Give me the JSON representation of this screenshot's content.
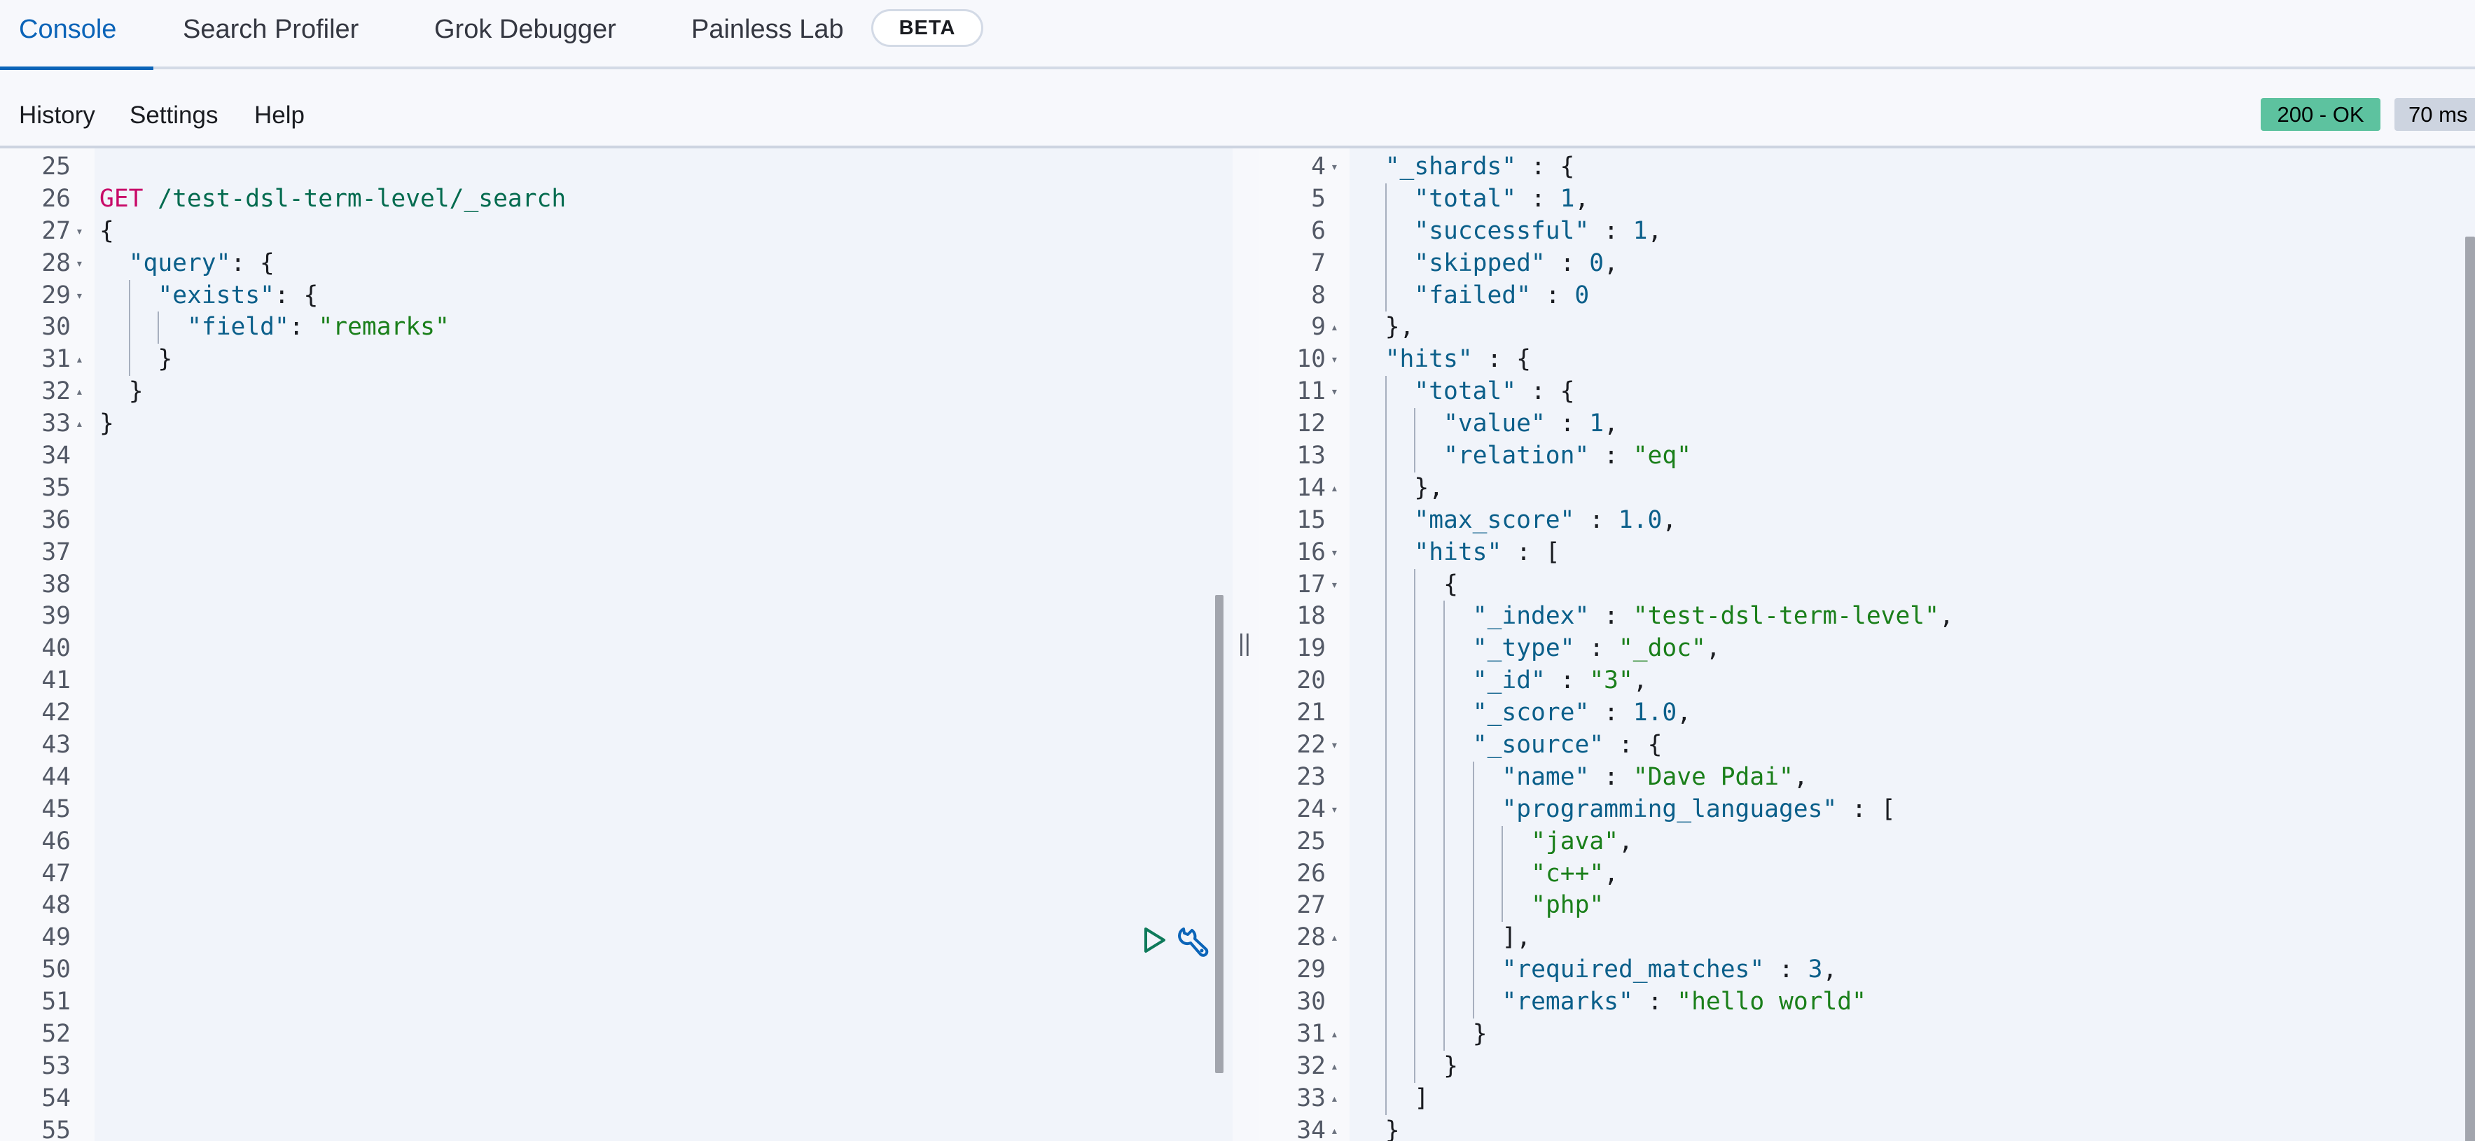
{
  "tabs": [
    {
      "label": "Console",
      "active": true
    },
    {
      "label": "Search Profiler"
    },
    {
      "label": "Grok Debugger"
    },
    {
      "label": "Painless Lab"
    }
  ],
  "beta_badge": "BETA",
  "menu": {
    "history": "History",
    "settings": "Settings",
    "help": "Help"
  },
  "status": {
    "code": "200 - OK",
    "time": "70 ms",
    "ok_color": "#5dc29f"
  },
  "icons": {
    "run": "play-icon",
    "options": "wrench-icon",
    "resize": "double-bar-icon"
  },
  "resize_glyph": "||",
  "request_editor": {
    "lines": [
      {
        "n": "25",
        "fold": "",
        "indent": 0,
        "tokens": []
      },
      {
        "n": "26",
        "fold": "",
        "indent": 0,
        "tokens": [
          [
            "m",
            "GET"
          ],
          [
            "p",
            " "
          ],
          [
            "u",
            "/test-dsl-term-level/_search"
          ]
        ]
      },
      {
        "n": "27",
        "fold": "open",
        "indent": 0,
        "tokens": [
          [
            "p",
            "{"
          ]
        ]
      },
      {
        "n": "28",
        "fold": "open",
        "indent": 1,
        "tokens": [
          [
            "k",
            "\"query\""
          ],
          [
            "p",
            ": {"
          ]
        ]
      },
      {
        "n": "29",
        "fold": "open",
        "indent": 2,
        "tokens": [
          [
            "k",
            "\"exists\""
          ],
          [
            "p",
            ": {"
          ]
        ]
      },
      {
        "n": "30",
        "fold": "",
        "indent": 3,
        "tokens": [
          [
            "k",
            "\"field\""
          ],
          [
            "p",
            ": "
          ],
          [
            "s",
            "\"remarks\""
          ]
        ]
      },
      {
        "n": "31",
        "fold": "close",
        "indent": 2,
        "tokens": [
          [
            "p",
            "}"
          ]
        ]
      },
      {
        "n": "32",
        "fold": "close",
        "indent": 1,
        "tokens": [
          [
            "p",
            "}"
          ]
        ]
      },
      {
        "n": "33",
        "fold": "close",
        "indent": 0,
        "tokens": [
          [
            "p",
            "}"
          ]
        ]
      },
      {
        "n": "34",
        "fold": "",
        "indent": 0,
        "tokens": []
      },
      {
        "n": "35",
        "fold": "",
        "indent": 0,
        "tokens": []
      },
      {
        "n": "36",
        "fold": "",
        "indent": 0,
        "tokens": []
      },
      {
        "n": "37",
        "fold": "",
        "indent": 0,
        "tokens": []
      },
      {
        "n": "38",
        "fold": "",
        "indent": 0,
        "tokens": []
      },
      {
        "n": "39",
        "fold": "",
        "indent": 0,
        "tokens": []
      },
      {
        "n": "40",
        "fold": "",
        "indent": 0,
        "tokens": []
      },
      {
        "n": "41",
        "fold": "",
        "indent": 0,
        "tokens": []
      },
      {
        "n": "42",
        "fold": "",
        "indent": 0,
        "tokens": []
      },
      {
        "n": "43",
        "fold": "",
        "indent": 0,
        "tokens": []
      },
      {
        "n": "44",
        "fold": "",
        "indent": 0,
        "tokens": []
      },
      {
        "n": "45",
        "fold": "",
        "indent": 0,
        "tokens": []
      },
      {
        "n": "46",
        "fold": "",
        "indent": 0,
        "tokens": []
      },
      {
        "n": "47",
        "fold": "",
        "indent": 0,
        "tokens": []
      },
      {
        "n": "48",
        "fold": "",
        "indent": 0,
        "tokens": []
      },
      {
        "n": "49",
        "fold": "",
        "indent": 0,
        "tokens": []
      },
      {
        "n": "50",
        "fold": "",
        "indent": 0,
        "tokens": []
      },
      {
        "n": "51",
        "fold": "",
        "indent": 0,
        "tokens": []
      },
      {
        "n": "52",
        "fold": "",
        "indent": 0,
        "tokens": []
      },
      {
        "n": "53",
        "fold": "",
        "indent": 0,
        "tokens": []
      },
      {
        "n": "54",
        "fold": "",
        "indent": 0,
        "tokens": []
      },
      {
        "n": "55",
        "fold": "",
        "indent": 0,
        "tokens": []
      }
    ]
  },
  "response_editor": {
    "lines": [
      {
        "n": "4",
        "fold": "open",
        "indent": 1,
        "tokens": [
          [
            "k",
            "\"_shards\""
          ],
          [
            "p",
            " : {"
          ]
        ]
      },
      {
        "n": "5",
        "fold": "",
        "indent": 2,
        "tokens": [
          [
            "k",
            "\"total\""
          ],
          [
            "p",
            " : "
          ],
          [
            "n",
            "1"
          ],
          [
            "p",
            ","
          ]
        ]
      },
      {
        "n": "6",
        "fold": "",
        "indent": 2,
        "tokens": [
          [
            "k",
            "\"successful\""
          ],
          [
            "p",
            " : "
          ],
          [
            "n",
            "1"
          ],
          [
            "p",
            ","
          ]
        ]
      },
      {
        "n": "7",
        "fold": "",
        "indent": 2,
        "tokens": [
          [
            "k",
            "\"skipped\""
          ],
          [
            "p",
            " : "
          ],
          [
            "n",
            "0"
          ],
          [
            "p",
            ","
          ]
        ]
      },
      {
        "n": "8",
        "fold": "",
        "indent": 2,
        "tokens": [
          [
            "k",
            "\"failed\""
          ],
          [
            "p",
            " : "
          ],
          [
            "n",
            "0"
          ]
        ]
      },
      {
        "n": "9",
        "fold": "close",
        "indent": 1,
        "tokens": [
          [
            "p",
            "},"
          ]
        ]
      },
      {
        "n": "10",
        "fold": "open",
        "indent": 1,
        "tokens": [
          [
            "k",
            "\"hits\""
          ],
          [
            "p",
            " : {"
          ]
        ]
      },
      {
        "n": "11",
        "fold": "open",
        "indent": 2,
        "tokens": [
          [
            "k",
            "\"total\""
          ],
          [
            "p",
            " : {"
          ]
        ]
      },
      {
        "n": "12",
        "fold": "",
        "indent": 3,
        "tokens": [
          [
            "k",
            "\"value\""
          ],
          [
            "p",
            " : "
          ],
          [
            "n",
            "1"
          ],
          [
            "p",
            ","
          ]
        ]
      },
      {
        "n": "13",
        "fold": "",
        "indent": 3,
        "tokens": [
          [
            "k",
            "\"relation\""
          ],
          [
            "p",
            " : "
          ],
          [
            "s",
            "\"eq\""
          ]
        ]
      },
      {
        "n": "14",
        "fold": "close",
        "indent": 2,
        "tokens": [
          [
            "p",
            "},"
          ]
        ]
      },
      {
        "n": "15",
        "fold": "",
        "indent": 2,
        "tokens": [
          [
            "k",
            "\"max_score\""
          ],
          [
            "p",
            " : "
          ],
          [
            "n",
            "1.0"
          ],
          [
            "p",
            ","
          ]
        ]
      },
      {
        "n": "16",
        "fold": "open",
        "indent": 2,
        "tokens": [
          [
            "k",
            "\"hits\""
          ],
          [
            "p",
            " : ["
          ]
        ]
      },
      {
        "n": "17",
        "fold": "open",
        "indent": 3,
        "tokens": [
          [
            "p",
            "{"
          ]
        ]
      },
      {
        "n": "18",
        "fold": "",
        "indent": 4,
        "tokens": [
          [
            "k",
            "\"_index\""
          ],
          [
            "p",
            " : "
          ],
          [
            "s",
            "\"test-dsl-term-level\""
          ],
          [
            "p",
            ","
          ]
        ]
      },
      {
        "n": "19",
        "fold": "",
        "indent": 4,
        "tokens": [
          [
            "k",
            "\"_type\""
          ],
          [
            "p",
            " : "
          ],
          [
            "s",
            "\"_doc\""
          ],
          [
            "p",
            ","
          ]
        ]
      },
      {
        "n": "20",
        "fold": "",
        "indent": 4,
        "tokens": [
          [
            "k",
            "\"_id\""
          ],
          [
            "p",
            " : "
          ],
          [
            "s",
            "\"3\""
          ],
          [
            "p",
            ","
          ]
        ]
      },
      {
        "n": "21",
        "fold": "",
        "indent": 4,
        "tokens": [
          [
            "k",
            "\"_score\""
          ],
          [
            "p",
            " : "
          ],
          [
            "n",
            "1.0"
          ],
          [
            "p",
            ","
          ]
        ]
      },
      {
        "n": "22",
        "fold": "open",
        "indent": 4,
        "tokens": [
          [
            "k",
            "\"_source\""
          ],
          [
            "p",
            " : {"
          ]
        ]
      },
      {
        "n": "23",
        "fold": "",
        "indent": 5,
        "tokens": [
          [
            "k",
            "\"name\""
          ],
          [
            "p",
            " : "
          ],
          [
            "s",
            "\"Dave Pdai\""
          ],
          [
            "p",
            ","
          ]
        ]
      },
      {
        "n": "24",
        "fold": "open",
        "indent": 5,
        "tokens": [
          [
            "k",
            "\"programming_languages\""
          ],
          [
            "p",
            " : ["
          ]
        ]
      },
      {
        "n": "25",
        "fold": "",
        "indent": 6,
        "tokens": [
          [
            "s",
            "\"java\""
          ],
          [
            "p",
            ","
          ]
        ]
      },
      {
        "n": "26",
        "fold": "",
        "indent": 6,
        "tokens": [
          [
            "s",
            "\"c++\""
          ],
          [
            "p",
            ","
          ]
        ]
      },
      {
        "n": "27",
        "fold": "",
        "indent": 6,
        "tokens": [
          [
            "s",
            "\"php\""
          ]
        ]
      },
      {
        "n": "28",
        "fold": "close",
        "indent": 5,
        "tokens": [
          [
            "p",
            "],"
          ]
        ]
      },
      {
        "n": "29",
        "fold": "",
        "indent": 5,
        "tokens": [
          [
            "k",
            "\"required_matches\""
          ],
          [
            "p",
            " : "
          ],
          [
            "n",
            "3"
          ],
          [
            "p",
            ","
          ]
        ]
      },
      {
        "n": "30",
        "fold": "",
        "indent": 5,
        "tokens": [
          [
            "k",
            "\"remarks\""
          ],
          [
            "p",
            " : "
          ],
          [
            "s",
            "\"hello world\""
          ]
        ]
      },
      {
        "n": "31",
        "fold": "close",
        "indent": 4,
        "tokens": [
          [
            "p",
            "}"
          ]
        ]
      },
      {
        "n": "32",
        "fold": "close",
        "indent": 3,
        "tokens": [
          [
            "p",
            "}"
          ]
        ]
      },
      {
        "n": "33",
        "fold": "close",
        "indent": 2,
        "tokens": [
          [
            "p",
            "]"
          ]
        ]
      },
      {
        "n": "34",
        "fold": "close",
        "indent": 1,
        "tokens": [
          [
            "p",
            "}"
          ]
        ]
      }
    ]
  }
}
